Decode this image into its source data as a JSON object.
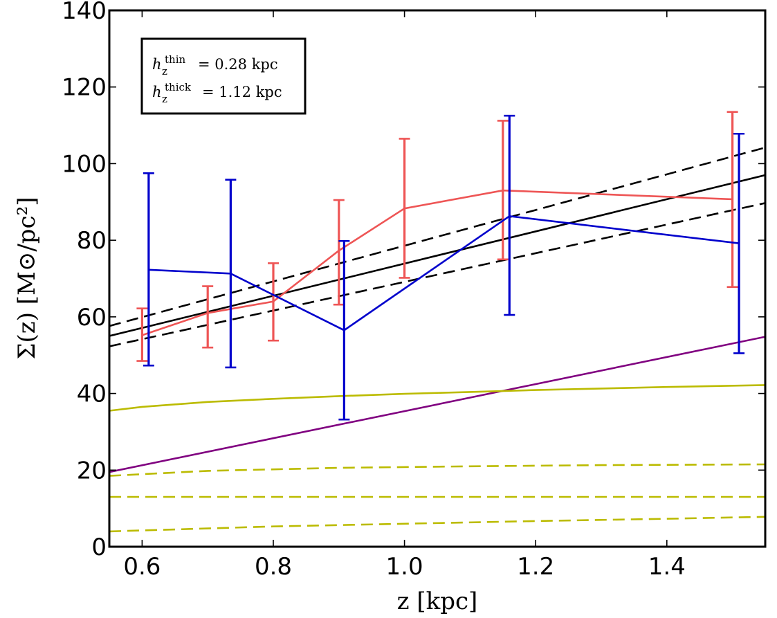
{
  "chart_data": {
    "type": "line",
    "xlabel": "z [kpc]",
    "ylabel": "Σ(z) [M⊙/pc²]",
    "xlim": [
      0.55,
      1.55
    ],
    "ylim": [
      0,
      140
    ],
    "xticks": [
      "0.6",
      "0.8",
      "1.0",
      "1.2",
      "1.4"
    ],
    "xtick_values": [
      0.6,
      0.8,
      1.0,
      1.2,
      1.4
    ],
    "yticks": [
      "0",
      "20",
      "40",
      "60",
      "80",
      "100",
      "120",
      "140"
    ],
    "ytick_values": [
      0,
      20,
      40,
      60,
      80,
      100,
      120,
      140
    ],
    "grid": false,
    "legend": {
      "placement": "top-left",
      "line1": {
        "sym": "h",
        "sub": "z",
        "sup": "thin",
        "value": "= 0.28 kpc"
      },
      "line2": {
        "sym": "h",
        "sub": "z",
        "sup": "thick",
        "value": "= 1.12 kpc"
      }
    },
    "errorbar_series": [
      {
        "color": "#ee5555",
        "x": [
          0.6,
          0.7,
          0.8,
          0.9,
          1.0,
          1.15,
          1.5
        ],
        "y": [
          55.2,
          61.0,
          64.0,
          77.3,
          88.3,
          93.0,
          90.7
        ],
        "err_low": [
          48.5,
          52.0,
          53.8,
          63.2,
          70.2,
          75.0,
          67.8
        ],
        "err_high": [
          62.2,
          68.0,
          74.0,
          90.5,
          106.5,
          111.2,
          113.5
        ]
      },
      {
        "color": "#0000cc",
        "x": [
          0.61,
          0.735,
          0.908,
          1.16,
          1.51
        ],
        "y": [
          72.3,
          71.3,
          56.5,
          86.3,
          79.2
        ],
        "err_low": [
          47.3,
          46.8,
          33.2,
          60.5,
          50.5
        ],
        "err_high": [
          97.5,
          95.8,
          79.8,
          112.5,
          107.8
        ]
      }
    ],
    "lines": [
      {
        "color": "#000000",
        "dash": false,
        "x": [
          0.55,
          1.55
        ],
        "y": [
          55.0,
          97.0
        ]
      },
      {
        "color": "#000000",
        "dash": true,
        "x": [
          0.55,
          1.55
        ],
        "y": [
          57.6,
          104.2
        ]
      },
      {
        "color": "#000000",
        "dash": true,
        "x": [
          0.55,
          1.55
        ],
        "y": [
          52.3,
          89.7
        ]
      },
      {
        "color": "#800080",
        "dash": false,
        "x": [
          0.55,
          1.55
        ],
        "y": [
          19.5,
          54.8
        ]
      },
      {
        "color": "#bbbb00",
        "dash": false,
        "x": [
          0.55,
          0.6,
          0.7,
          0.8,
          0.9,
          1.0,
          1.1,
          1.2,
          1.3,
          1.4,
          1.55
        ],
        "y": [
          35.5,
          36.5,
          37.8,
          38.6,
          39.3,
          39.9,
          40.4,
          40.9,
          41.3,
          41.7,
          42.2
        ]
      },
      {
        "color": "#bbbb00",
        "dash": true,
        "x": [
          0.55,
          0.7,
          0.9,
          1.1,
          1.3,
          1.55
        ],
        "y": [
          18.5,
          19.8,
          20.6,
          21.0,
          21.3,
          21.5
        ]
      },
      {
        "color": "#bbbb00",
        "dash": true,
        "x": [
          0.55,
          1.55
        ],
        "y": [
          13.0,
          13.0
        ]
      },
      {
        "color": "#bbbb00",
        "dash": true,
        "x": [
          0.55,
          0.8,
          1.0,
          1.2,
          1.4,
          1.55
        ],
        "y": [
          4.0,
          5.3,
          6.0,
          6.7,
          7.3,
          7.8
        ]
      }
    ]
  }
}
